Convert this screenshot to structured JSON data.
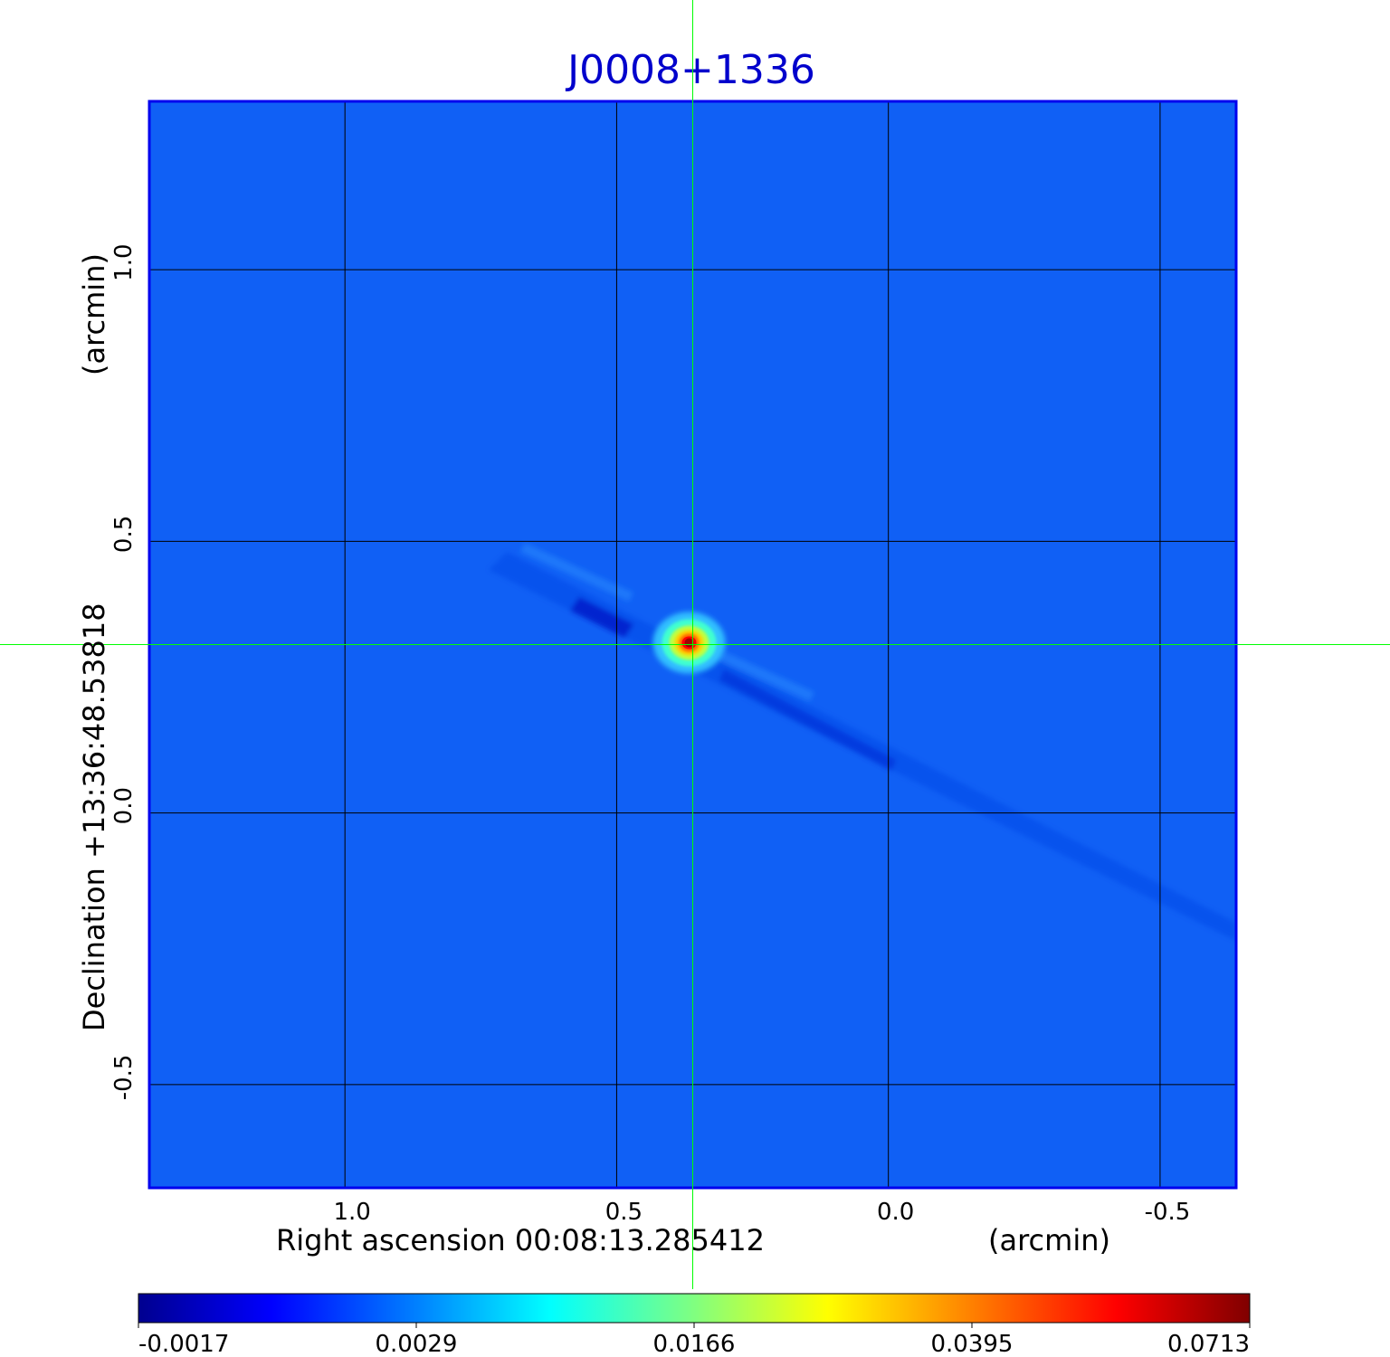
{
  "chart_data": {
    "type": "heatmap",
    "title": "J0008+1336",
    "xlabel": "Right ascension  00:08:13.285412",
    "xunit": "(arcmin)",
    "ylabel": "Declination  +13:36:48.53818",
    "yunit": "(arcmin)",
    "xlim": [
      1.36,
      -0.64
    ],
    "ylim": [
      -0.69,
      1.31
    ],
    "x_ticks": [
      1.0,
      0.5,
      0.0,
      -0.5
    ],
    "x_tick_labels": [
      "1.0",
      "0.5",
      "0.0",
      "-0.5"
    ],
    "y_ticks": [
      1.0,
      0.5,
      0.0,
      -0.5
    ],
    "y_tick_labels": [
      "1.0",
      "0.5",
      "0.0",
      "-0.5"
    ],
    "grid": true,
    "crosshair": {
      "x": 0.36,
      "y": 0.31
    },
    "source": {
      "x": 0.36,
      "y": 0.31,
      "peak": 0.0713
    },
    "colorbar": {
      "ticks": [
        -0.0017,
        0.0029,
        0.0166,
        0.0395,
        0.0713
      ],
      "tick_labels": [
        "-0.0017",
        "0.0029",
        "0.0166",
        "0.0395",
        "0.0713"
      ],
      "colormap": [
        "#00008f",
        "#0000ff",
        "#0080ff",
        "#00ffff",
        "#80ff80",
        "#ffff00",
        "#ff8000",
        "#ff0000",
        "#800000"
      ]
    },
    "background_value": 0.0008
  },
  "colors": {
    "title": "#0000cc",
    "frame": "#0000ee",
    "grid": "#000000",
    "crosshair": "#00ff00"
  }
}
